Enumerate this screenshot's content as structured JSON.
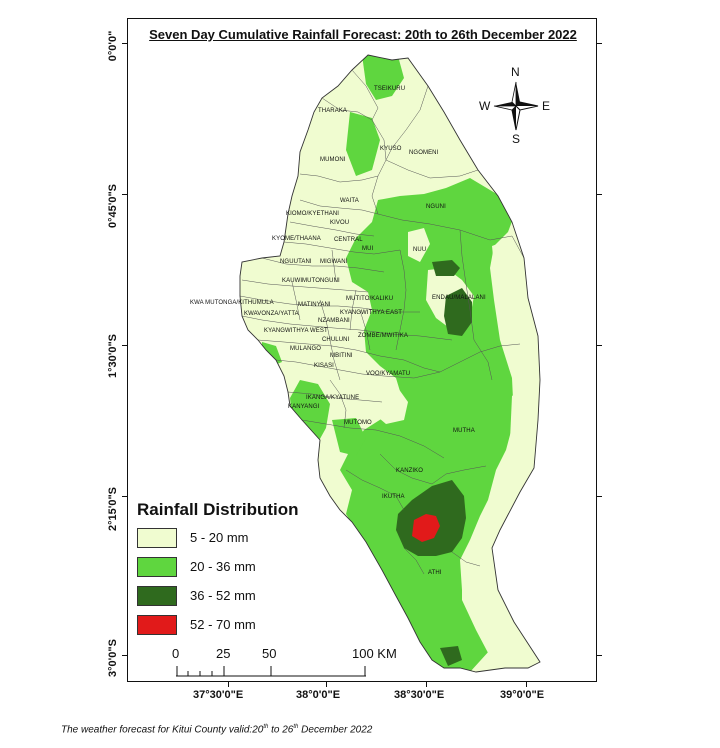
{
  "title": "Seven Day Cumulative Rainfall Forecast: 20th to 26th December 2022",
  "latitude_labels": [
    "0°0'0\"",
    "0°45'0\"S",
    "1°30'0\"S",
    "2°15'0\"S",
    "3°0'0\"S"
  ],
  "longitude_labels": [
    "37°30'0\"E",
    "38°0'0\"E",
    "38°30'0\"E",
    "39°0'0\"E"
  ],
  "compass": {
    "n": "N",
    "s": "S",
    "e": "E",
    "w": "W"
  },
  "places": [
    "TSEIKURU",
    "THARAKA",
    "KYUSO",
    "MUMONI",
    "NGOMENI",
    "WAITA",
    "NGUNI",
    "KIOMO/KYETHANI",
    "KIVOU",
    "KYOME/THAANA",
    "CENTRAL",
    "MUI",
    "NUU",
    "NGUUTANI",
    "MIGWANI",
    "KAUWI",
    "MUTONGUNI",
    "KWA MUTONGA/KITHUMULA",
    "MATINYANI",
    "MUTITO/KALIKU",
    "ENDAU/MALALANI",
    "KWAVONZA/YATTA",
    "KYANGWITHYA EAST",
    "NZAMBANI",
    "KYANGWITHYA WEST",
    "CHULUNI",
    "ZOMBE/MWITIKA",
    "MULANGO",
    "MBITINI",
    "KISASI",
    "VOO/KYAMATU",
    "IKANGA/KYATUNE",
    "KANYANGI",
    "MUTOMO",
    "MUTHA",
    "KANZIKO",
    "IKUTHA",
    "ATHI"
  ],
  "legend": {
    "title": "Rainfall Distribution",
    "items": [
      {
        "label": "5 - 20 mm",
        "color": "#f0fcd0"
      },
      {
        "label": "20 - 36 mm",
        "color": "#5fd63f"
      },
      {
        "label": "36 - 52 mm",
        "color": "#2f6a1e"
      },
      {
        "label": "52 - 70 mm",
        "color": "#e11a1a"
      }
    ]
  },
  "scale_bar": {
    "ticks": [
      "0",
      "25",
      "50",
      "100 KM"
    ]
  },
  "caption": {
    "before": "The weather forecast for Kitui County valid:20",
    "sup1": "th",
    "middle": " to 26",
    "sup2": "th",
    "after": " December 2022"
  }
}
